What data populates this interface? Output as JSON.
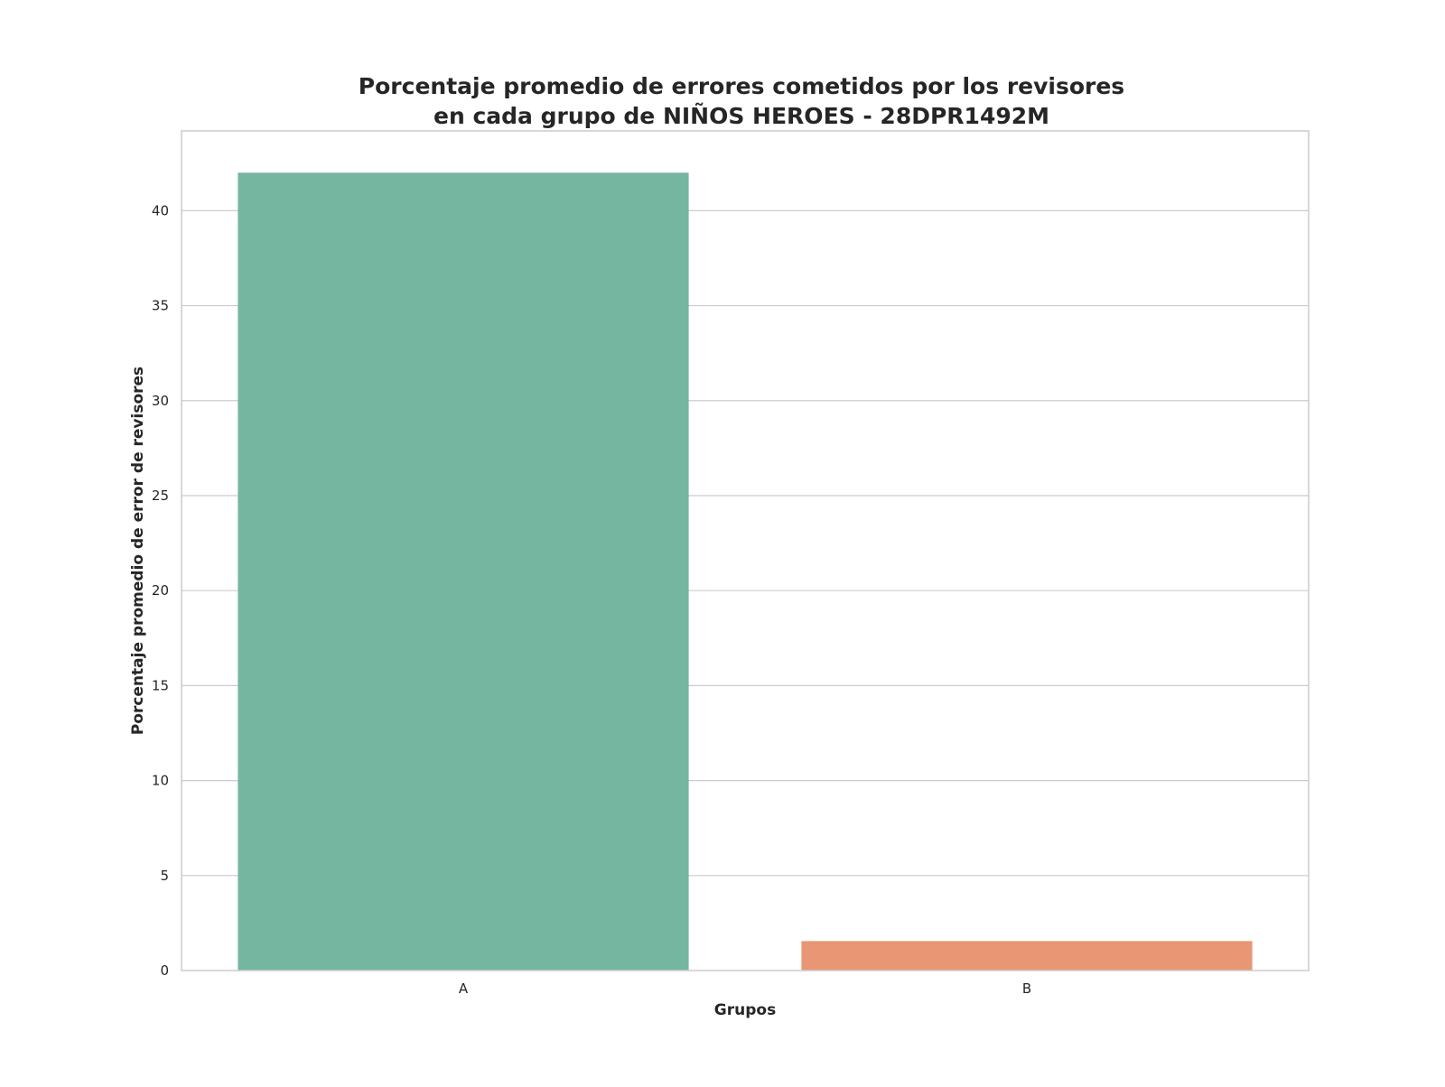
{
  "chart_data": {
    "type": "bar",
    "title_lines": [
      "Porcentaje promedio de errores cometidos por los revisores",
      "en cada grupo de NIÑOS HEROES - 28DPR1492M"
    ],
    "xlabel": "Grupos",
    "ylabel": "Porcentaje promedio de error de revisores",
    "categories": [
      "A",
      "B"
    ],
    "values": [
      42.0,
      1.55
    ],
    "colors": [
      "#75b6a0",
      "#e89674"
    ],
    "ylim": [
      0,
      44.2
    ],
    "yticks": [
      0,
      5,
      10,
      15,
      20,
      25,
      30,
      35,
      40
    ],
    "ytick_labels": [
      "0",
      "5",
      "10",
      "15",
      "20",
      "25",
      "30",
      "35",
      "40"
    ],
    "grid": "horizontal",
    "legend": "none"
  }
}
